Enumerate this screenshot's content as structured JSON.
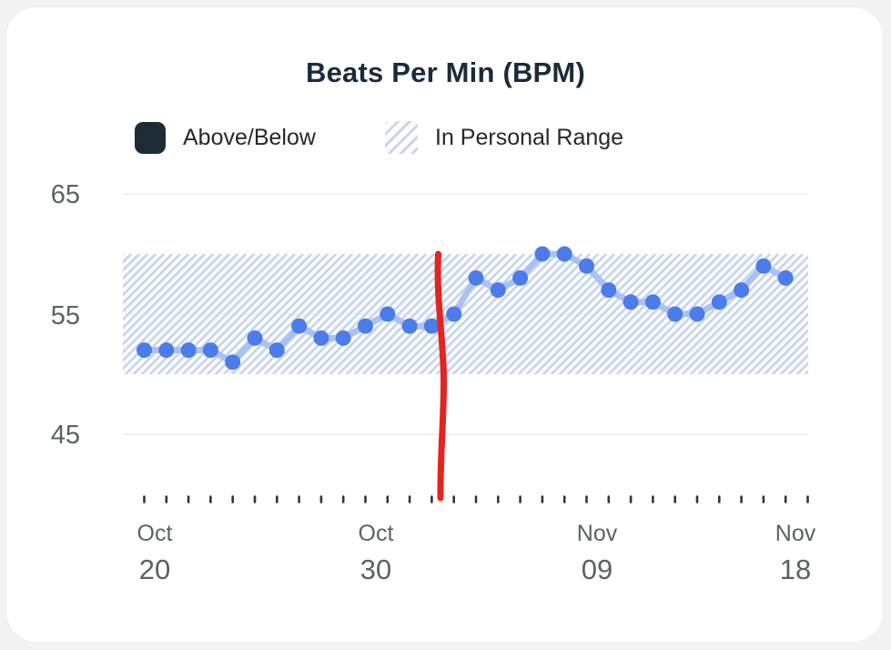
{
  "title": "Beats Per Min (BPM)",
  "legend": {
    "items": [
      {
        "label": "Above/Below",
        "swatch": "solid-dark-rounded-square",
        "swatch_color": "#1d2b36"
      },
      {
        "label": "In Personal Range",
        "swatch": "diagonal-hatch-square",
        "swatch_color": "#c7d5f0"
      }
    ]
  },
  "axes": {
    "y_labels": [
      "65",
      "55",
      "45"
    ],
    "x_labels": [
      {
        "month": "Oct",
        "day": "20"
      },
      {
        "month": "Oct",
        "day": "30"
      },
      {
        "month": "Nov",
        "day": "09"
      },
      {
        "month": "Nov",
        "day": "18"
      }
    ]
  },
  "chart_data": {
    "type": "line",
    "title": "Beats Per Min (BPM)",
    "unit": "BPM",
    "x": [
      "Oct 20",
      "Oct 21",
      "Oct 22",
      "Oct 23",
      "Oct 24",
      "Oct 25",
      "Oct 26",
      "Oct 27",
      "Oct 28",
      "Oct 29",
      "Oct 30",
      "Oct 31",
      "Nov 01",
      "Nov 02",
      "Nov 03",
      "Nov 04",
      "Nov 05",
      "Nov 06",
      "Nov 07",
      "Nov 08",
      "Nov 09",
      "Nov 10",
      "Nov 11",
      "Nov 12",
      "Nov 13",
      "Nov 14",
      "Nov 15",
      "Nov 16",
      "Nov 17",
      "Nov 18"
    ],
    "values": [
      52,
      52,
      52,
      52,
      51,
      53,
      52,
      54,
      53,
      53,
      54,
      55,
      54,
      54,
      55,
      58,
      57,
      58,
      60,
      60,
      59,
      57,
      56,
      56,
      55,
      55,
      56,
      57,
      59,
      58
    ],
    "series": [
      {
        "name": "Beats Per Min",
        "values": [
          52,
          52,
          52,
          52,
          51,
          53,
          52,
          54,
          53,
          53,
          54,
          55,
          54,
          54,
          55,
          58,
          57,
          58,
          60,
          60,
          59,
          57,
          56,
          56,
          55,
          55,
          56,
          57,
          59,
          58
        ]
      }
    ],
    "y_gridlines": [
      65,
      55,
      45
    ],
    "ylim": [
      44,
      66
    ],
    "x_major_tick_labels": [
      "Oct 20",
      "Oct 30",
      "Nov 09",
      "Nov 18"
    ],
    "x_minor_ticks": "one tick per day, 31 ticks",
    "grid": "horizontal only, very light",
    "legend_position": "top-left above plot",
    "personal_range": {
      "min": 50,
      "max": 60,
      "label": "In Personal Range",
      "style": "diagonal light-blue hatch band"
    },
    "annotation": {
      "type": "hand-drawn-vertical-line",
      "color": "#e42420",
      "between_dates": [
        "Nov 02",
        "Nov 03"
      ],
      "spans": "from top of personal range (60 BPM) down to the x-axis tick row"
    }
  },
  "colors": {
    "page_bg": "#f3f3f4",
    "card_bg": "#ffffff",
    "title_text": "#1c2b37",
    "legend_dark_swatch": "#1d2b36",
    "axis_text": "#5c6165",
    "grid": "#f1f1f2",
    "hatch_blue": "#c7d5f0",
    "line_blue": "#a9c2f1",
    "dot_blue": "#4c7ce9",
    "tick": "#30363b",
    "annotation_red": "#e42420"
  }
}
